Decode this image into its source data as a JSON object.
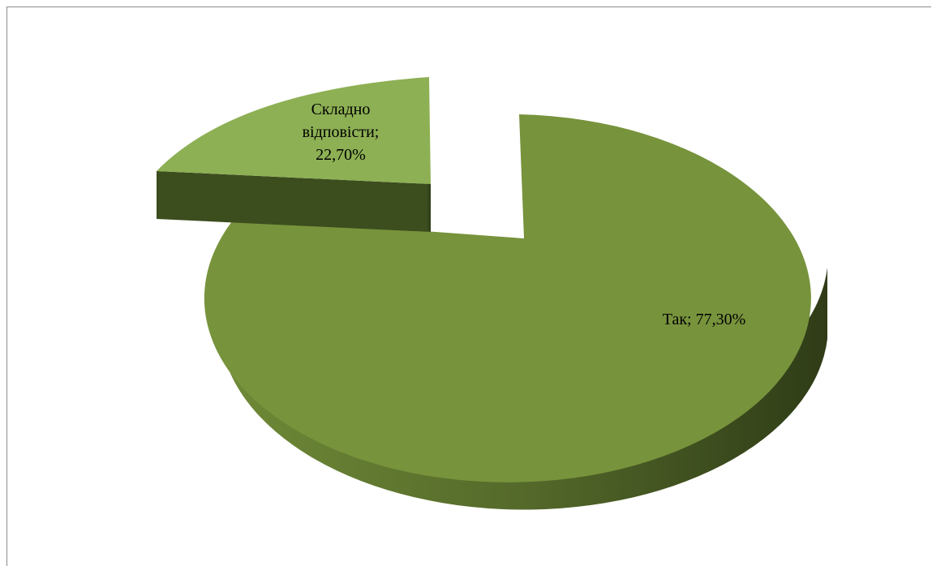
{
  "chart_data": {
    "type": "pie",
    "title": "",
    "slices": [
      {
        "label": "Так",
        "value": 77.3,
        "display": "77,30%",
        "color": "#77933c"
      },
      {
        "label": "Складно відповісти",
        "value": 22.7,
        "display": "22,70%",
        "color": "#8db054"
      }
    ],
    "labels": {
      "tak": "Так; 77,30%",
      "skladno_line1": "Складно",
      "skladno_line2": "відповісти;",
      "skladno_line3": "22,70%"
    }
  }
}
